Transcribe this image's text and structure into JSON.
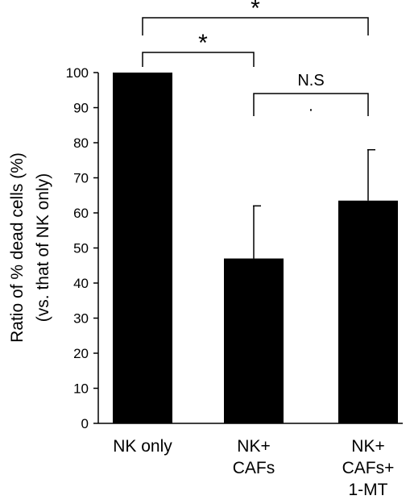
{
  "chart_data": {
    "type": "bar",
    "categories": [
      [
        "NK only"
      ],
      [
        "NK+",
        "CAFs"
      ],
      [
        "NK+",
        "CAFs+",
        "1-MT"
      ]
    ],
    "values": [
      100,
      47,
      63.5
    ],
    "errors": [
      0,
      15,
      14.5
    ],
    "ylim": [
      0,
      100
    ],
    "yticks": [
      0,
      10,
      20,
      30,
      40,
      50,
      60,
      70,
      80,
      90,
      100
    ],
    "ylabel_lines": [
      "Ratio of % dead cells (%)",
      "(vs. that of NK only)"
    ],
    "xlabel": "",
    "title": "",
    "bar_color": "#000000",
    "grid": false,
    "annotations": [
      {
        "from": 0,
        "to": 2,
        "label": "*",
        "level": 2
      },
      {
        "from": 0,
        "to": 1,
        "label": "*",
        "level": 1
      },
      {
        "from": 1,
        "to": 2,
        "label": "N.S",
        "level": 0,
        "dot": "·"
      }
    ]
  }
}
